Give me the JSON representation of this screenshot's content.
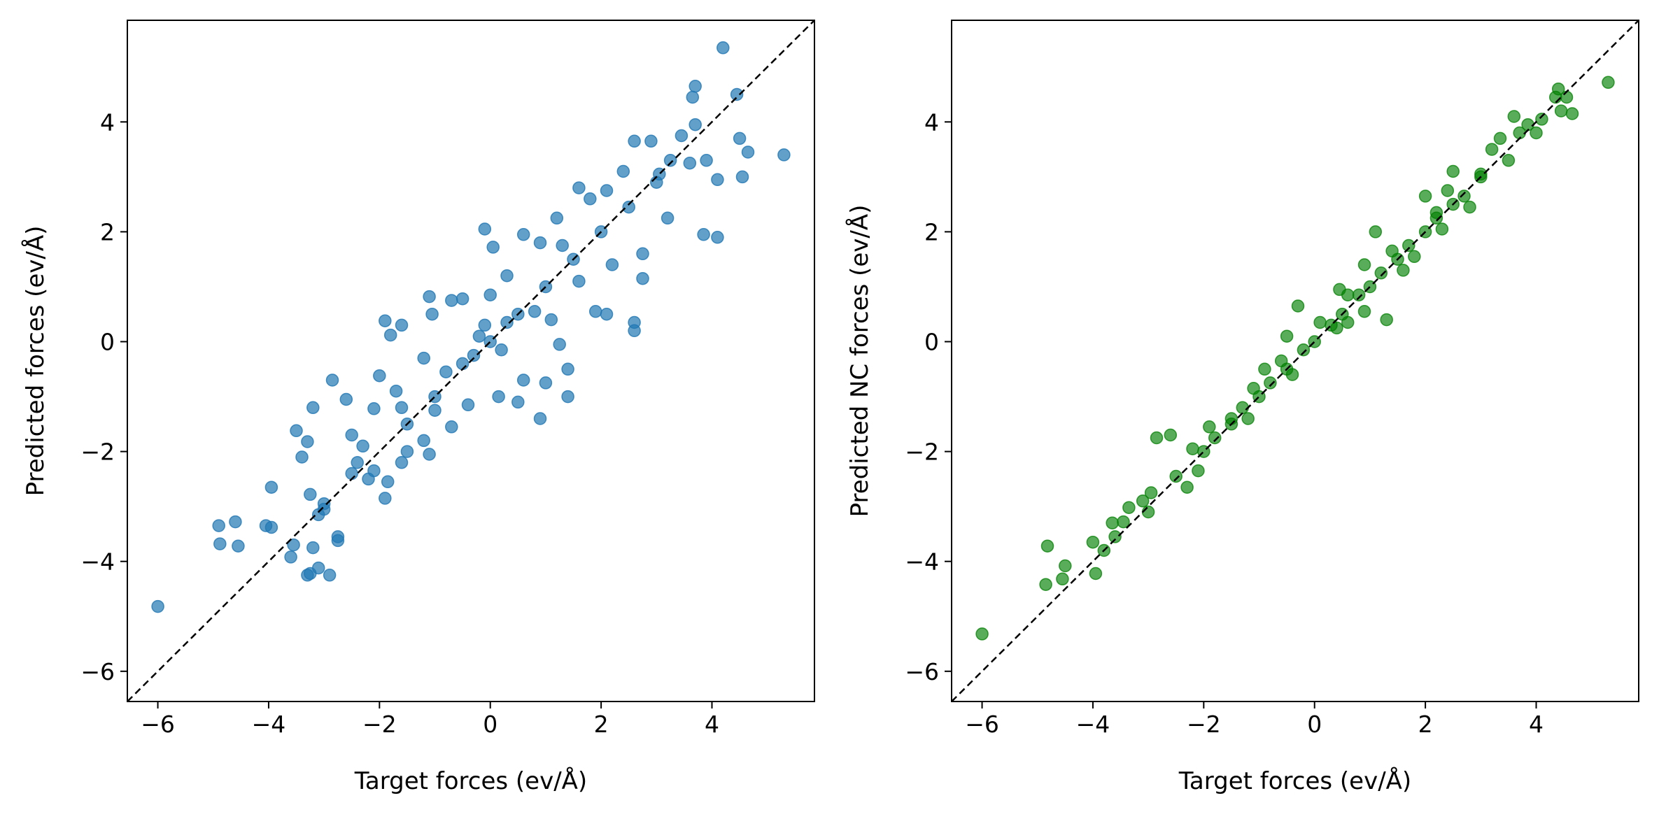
{
  "figure": {
    "background": "#ffffff"
  },
  "chart_data": [
    {
      "type": "scatter",
      "title": "",
      "xlabel": "Target forces (ev/Å)",
      "ylabel": "Predicted forces (ev/Å)",
      "xlim": [
        -6.55,
        5.85
      ],
      "ylim": [
        -6.55,
        5.85
      ],
      "xticks": [
        -6,
        -4,
        -2,
        0,
        2,
        4
      ],
      "yticks": [
        -6,
        -4,
        -2,
        0,
        2,
        4
      ],
      "grid": false,
      "reference_line": {
        "from": [
          -6.55,
          -6.55
        ],
        "to": [
          5.85,
          5.85
        ],
        "style": "dashed",
        "color": "#000000"
      },
      "series": [
        {
          "color": "#1f77b4",
          "alpha": 0.7,
          "points": [
            [
              -6.0,
              -4.82
            ],
            [
              -4.9,
              -3.35
            ],
            [
              -4.88,
              -3.68
            ],
            [
              -4.6,
              -3.28
            ],
            [
              -4.55,
              -3.72
            ],
            [
              -4.05,
              -3.35
            ],
            [
              -3.95,
              -3.38
            ],
            [
              -3.95,
              -2.65
            ],
            [
              -3.6,
              -3.92
            ],
            [
              -3.55,
              -3.7
            ],
            [
              -3.3,
              -4.25
            ],
            [
              -3.25,
              -4.22
            ],
            [
              -3.2,
              -3.75
            ],
            [
              -3.1,
              -3.15
            ],
            [
              -3.1,
              -4.12
            ],
            [
              -2.9,
              -4.25
            ],
            [
              -2.75,
              -3.62
            ],
            [
              -2.75,
              -3.55
            ],
            [
              -3.0,
              -2.95
            ],
            [
              -3.25,
              -2.78
            ],
            [
              -3.4,
              -2.1
            ],
            [
              -3.5,
              -1.62
            ],
            [
              -3.3,
              -1.82
            ],
            [
              -3.2,
              -1.2
            ],
            [
              -2.85,
              -0.7
            ],
            [
              -2.6,
              -1.05
            ],
            [
              -2.5,
              -1.7
            ],
            [
              -2.4,
              -2.2
            ],
            [
              -2.2,
              -2.5
            ],
            [
              -2.1,
              -2.35
            ],
            [
              -1.9,
              -2.85
            ],
            [
              -1.85,
              -2.55
            ],
            [
              -1.6,
              -2.2
            ],
            [
              -1.5,
              -2.0
            ],
            [
              -1.2,
              -1.8
            ],
            [
              -2.1,
              -1.22
            ],
            [
              -2.0,
              -0.62
            ],
            [
              -1.9,
              0.38
            ],
            [
              -1.8,
              0.12
            ],
            [
              -1.6,
              0.3
            ],
            [
              -1.05,
              0.5
            ],
            [
              -1.1,
              0.82
            ],
            [
              -0.7,
              0.75
            ],
            [
              -0.5,
              0.78
            ],
            [
              -0.2,
              0.1
            ],
            [
              0.0,
              0.85
            ],
            [
              -0.1,
              2.05
            ],
            [
              0.05,
              1.72
            ],
            [
              0.3,
              1.2
            ],
            [
              0.6,
              1.95
            ],
            [
              0.9,
              1.8
            ],
            [
              1.2,
              2.25
            ],
            [
              1.6,
              2.8
            ],
            [
              1.8,
              2.6
            ],
            [
              2.1,
              2.75
            ],
            [
              2.4,
              3.1
            ],
            [
              2.6,
              3.65
            ],
            [
              2.9,
              3.65
            ],
            [
              3.05,
              3.05
            ],
            [
              3.25,
              3.3
            ],
            [
              3.45,
              3.75
            ],
            [
              3.6,
              3.25
            ],
            [
              3.65,
              4.45
            ],
            [
              3.7,
              4.65
            ],
            [
              3.7,
              3.95
            ],
            [
              3.9,
              3.3
            ],
            [
              4.2,
              5.35
            ],
            [
              4.1,
              2.95
            ],
            [
              4.45,
              4.5
            ],
            [
              4.5,
              3.7
            ],
            [
              4.55,
              3.0
            ],
            [
              4.65,
              3.45
            ],
            [
              5.3,
              3.4
            ],
            [
              4.1,
              1.9
            ],
            [
              3.85,
              1.95
            ],
            [
              3.2,
              2.25
            ],
            [
              2.75,
              1.6
            ],
            [
              2.75,
              1.15
            ],
            [
              2.6,
              0.35
            ],
            [
              2.6,
              0.2
            ],
            [
              2.1,
              0.5
            ],
            [
              1.9,
              0.55
            ],
            [
              1.25,
              -0.05
            ],
            [
              1.4,
              -0.5
            ],
            [
              1.0,
              -0.75
            ],
            [
              0.6,
              -0.7
            ],
            [
              0.5,
              -1.1
            ],
            [
              0.9,
              -1.4
            ],
            [
              1.4,
              -1.0
            ],
            [
              0.15,
              -1.0
            ],
            [
              -0.4,
              -1.15
            ],
            [
              -0.7,
              -1.55
            ],
            [
              -1.1,
              -2.05
            ],
            [
              -1.0,
              -1.25
            ],
            [
              -0.5,
              -0.4
            ],
            [
              0.0,
              0.0
            ],
            [
              0.5,
              0.5
            ],
            [
              1.0,
              1.0
            ],
            [
              1.5,
              1.5
            ],
            [
              2.0,
              2.0
            ],
            [
              -1.5,
              -1.5
            ],
            [
              -1.0,
              -1.0
            ],
            [
              -0.3,
              -0.25
            ],
            [
              0.3,
              0.35
            ],
            [
              -2.5,
              -2.4
            ],
            [
              2.5,
              2.45
            ],
            [
              3.0,
              2.9
            ],
            [
              -3.0,
              -3.05
            ],
            [
              -0.8,
              -0.55
            ],
            [
              0.8,
              0.55
            ],
            [
              1.6,
              1.1
            ],
            [
              -1.6,
              -1.2
            ],
            [
              -1.7,
              -0.9
            ],
            [
              1.3,
              1.75
            ],
            [
              0.2,
              -0.15
            ],
            [
              -0.1,
              0.3
            ],
            [
              2.2,
              1.4
            ],
            [
              -2.3,
              -1.9
            ],
            [
              1.1,
              0.4
            ],
            [
              -1.2,
              -0.3
            ]
          ]
        }
      ]
    },
    {
      "type": "scatter",
      "title": "",
      "xlabel": "Target forces (ev/Å)",
      "ylabel": "Predicted NC forces (ev/Å)",
      "xlim": [
        -6.55,
        5.85
      ],
      "ylim": [
        -6.55,
        5.85
      ],
      "xticks": [
        -6,
        -4,
        -2,
        0,
        2,
        4
      ],
      "yticks": [
        -6,
        -4,
        -2,
        0,
        2,
        4
      ],
      "grid": false,
      "reference_line": {
        "from": [
          -6.55,
          -6.55
        ],
        "to": [
          5.85,
          5.85
        ],
        "style": "dashed",
        "color": "#000000"
      },
      "series": [
        {
          "color": "#008000",
          "alpha": 0.65,
          "points": [
            [
              -6.0,
              -5.32
            ],
            [
              -4.85,
              -4.42
            ],
            [
              -4.82,
              -3.72
            ],
            [
              -4.55,
              -4.32
            ],
            [
              -4.5,
              -4.08
            ],
            [
              -4.0,
              -3.65
            ],
            [
              -3.95,
              -4.22
            ],
            [
              -3.8,
              -3.8
            ],
            [
              -3.65,
              -3.3
            ],
            [
              -3.6,
              -3.55
            ],
            [
              -3.45,
              -3.28
            ],
            [
              -3.35,
              -3.02
            ],
            [
              -3.1,
              -2.9
            ],
            [
              -2.95,
              -2.75
            ],
            [
              -2.85,
              -1.75
            ],
            [
              -2.6,
              -1.7
            ],
            [
              -2.3,
              -2.65
            ],
            [
              -2.1,
              -2.35
            ],
            [
              -1.9,
              -1.55
            ],
            [
              -1.5,
              -1.4
            ],
            [
              -1.2,
              -1.4
            ],
            [
              -0.9,
              -0.5
            ],
            [
              -0.5,
              0.1
            ],
            [
              -0.3,
              0.65
            ],
            [
              0.4,
              0.25
            ],
            [
              0.45,
              0.95
            ],
            [
              0.6,
              0.35
            ],
            [
              0.9,
              1.4
            ],
            [
              0.9,
              0.55
            ],
            [
              1.1,
              2.0
            ],
            [
              1.3,
              0.4
            ],
            [
              1.8,
              1.55
            ],
            [
              2.0,
              2.65
            ],
            [
              2.2,
              2.35
            ],
            [
              2.4,
              2.75
            ],
            [
              2.5,
              3.1
            ],
            [
              2.8,
              2.45
            ],
            [
              3.0,
              3.0
            ],
            [
              3.2,
              3.5
            ],
            [
              3.35,
              3.7
            ],
            [
              3.5,
              3.3
            ],
            [
              3.6,
              4.1
            ],
            [
              3.7,
              3.8
            ],
            [
              3.85,
              3.95
            ],
            [
              4.0,
              3.8
            ],
            [
              4.1,
              4.05
            ],
            [
              4.35,
              4.45
            ],
            [
              4.4,
              4.6
            ],
            [
              4.45,
              4.2
            ],
            [
              4.55,
              4.45
            ],
            [
              4.65,
              4.15
            ],
            [
              5.3,
              4.72
            ],
            [
              -2.0,
              -2.0
            ],
            [
              -1.5,
              -1.5
            ],
            [
              -1.0,
              -1.0
            ],
            [
              -0.5,
              -0.5
            ],
            [
              0.0,
              0.0
            ],
            [
              0.5,
              0.5
            ],
            [
              1.0,
              1.0
            ],
            [
              1.5,
              1.5
            ],
            [
              2.0,
              2.0
            ],
            [
              2.5,
              2.5
            ],
            [
              3.0,
              3.05
            ],
            [
              -2.5,
              -2.45
            ],
            [
              -3.0,
              -3.1
            ],
            [
              -1.8,
              -1.75
            ],
            [
              -1.3,
              -1.2
            ],
            [
              -0.8,
              -0.75
            ],
            [
              -0.2,
              -0.15
            ],
            [
              0.3,
              0.3
            ],
            [
              0.8,
              0.85
            ],
            [
              1.2,
              1.25
            ],
            [
              1.7,
              1.75
            ],
            [
              2.2,
              2.25
            ],
            [
              2.7,
              2.65
            ],
            [
              -1.1,
              -0.85
            ],
            [
              -0.6,
              -0.35
            ],
            [
              0.1,
              0.35
            ],
            [
              0.6,
              0.85
            ],
            [
              1.4,
              1.65
            ],
            [
              -2.2,
              -1.95
            ],
            [
              1.6,
              1.3
            ],
            [
              -0.4,
              -0.6
            ],
            [
              2.3,
              2.05
            ]
          ]
        }
      ]
    }
  ]
}
